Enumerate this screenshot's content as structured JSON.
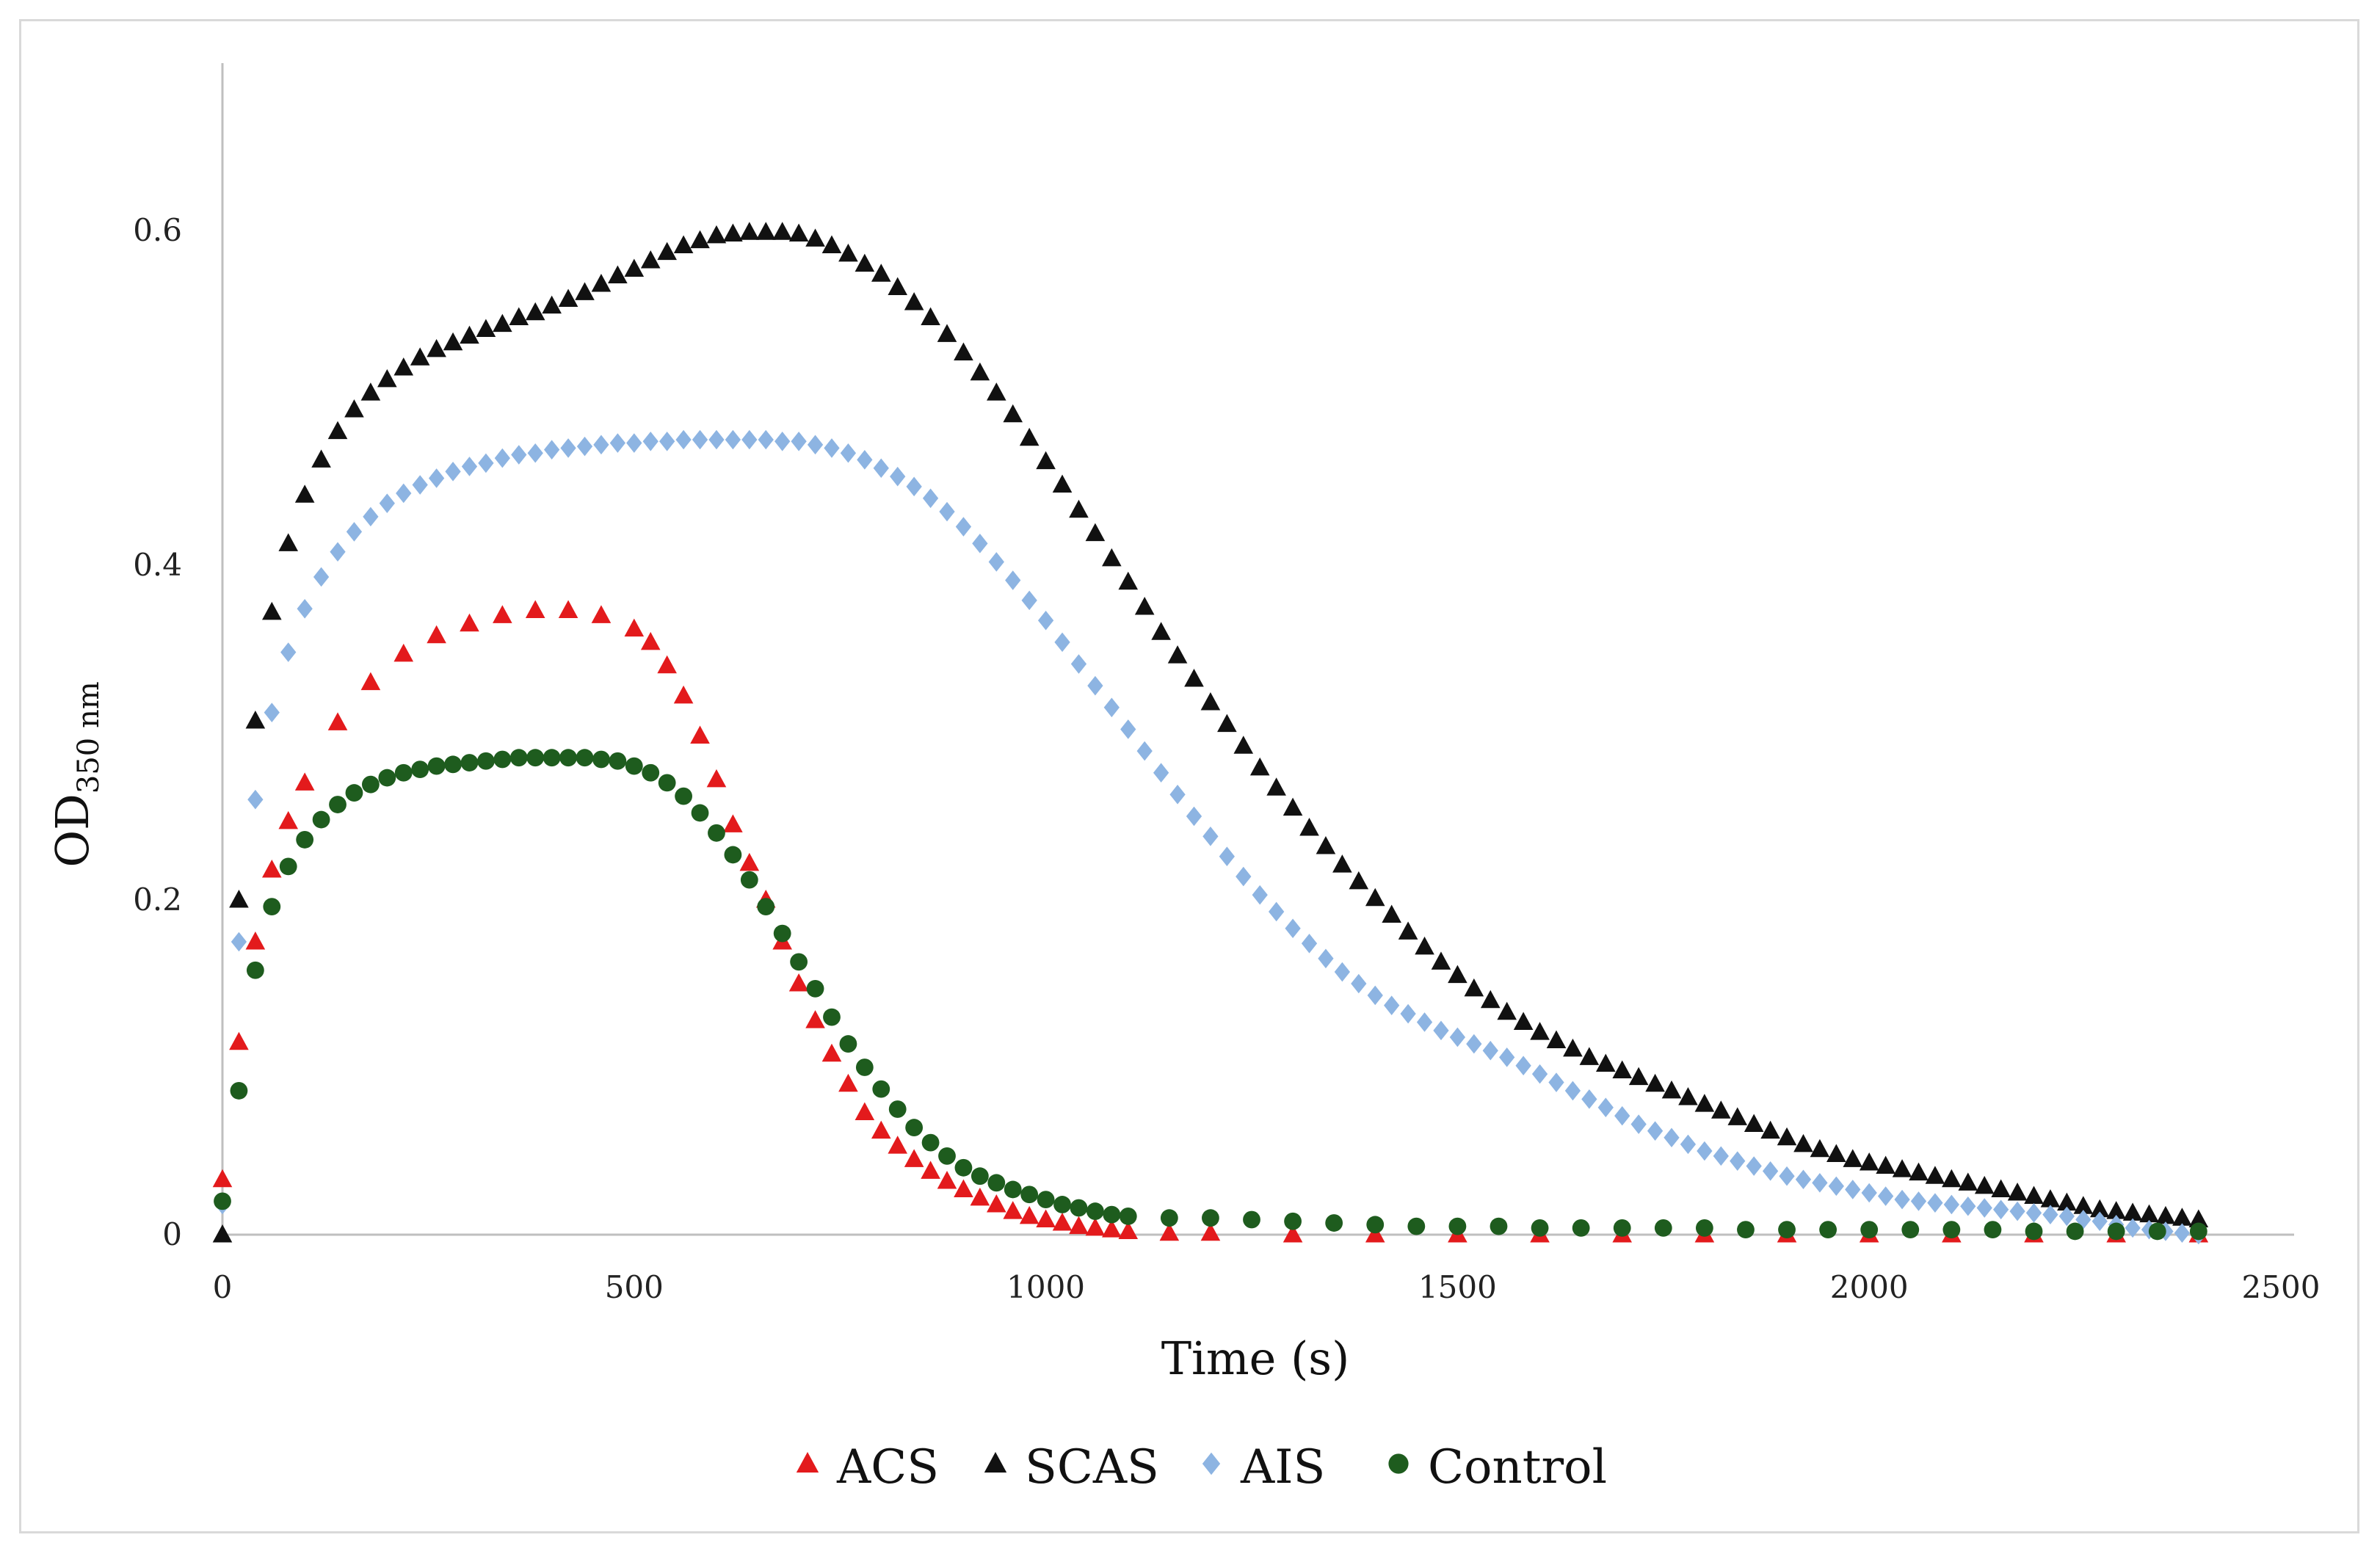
{
  "chart_data": {
    "type": "scatter",
    "xlabel": "Time (s)",
    "ylabel_main": "OD",
    "ylabel_sub": "350 nm",
    "xlim": [
      0,
      2500
    ],
    "ylim": [
      0,
      0.7
    ],
    "x_ticks": [
      0,
      500,
      1000,
      1500,
      2000,
      2500
    ],
    "y_ticks": [
      0,
      0.2,
      0.4,
      0.6
    ],
    "x_tick_labels": [
      "0",
      "500",
      "1000",
      "1500",
      "2000",
      "2500"
    ],
    "y_tick_labels": [
      "0",
      "0.2",
      "0.4",
      "0.6"
    ],
    "grid": false,
    "legend_position": "bottom",
    "series": [
      {
        "name": "ACS",
        "marker": "triangle",
        "color": "#e31a1c",
        "x": [
          0,
          20,
          40,
          60,
          80,
          100,
          140,
          180,
          220,
          260,
          300,
          340,
          380,
          420,
          460,
          500,
          520,
          540,
          560,
          580,
          600,
          620,
          640,
          660,
          680,
          700,
          720,
          740,
          760,
          780,
          800,
          820,
          840,
          860,
          880,
          900,
          920,
          940,
          960,
          980,
          1000,
          1020,
          1040,
          1060,
          1080,
          1100,
          1150,
          1200,
          1300,
          1400,
          1500,
          1600,
          1700,
          1800,
          1900,
          2000,
          2100,
          2200,
          2300,
          2400
        ],
        "y": [
          0.033,
          0.115,
          0.175,
          0.218,
          0.247,
          0.27,
          0.306,
          0.33,
          0.347,
          0.358,
          0.365,
          0.37,
          0.373,
          0.373,
          0.37,
          0.362,
          0.354,
          0.34,
          0.322,
          0.298,
          0.272,
          0.245,
          0.222,
          0.2,
          0.175,
          0.15,
          0.128,
          0.108,
          0.09,
          0.073,
          0.062,
          0.053,
          0.045,
          0.038,
          0.032,
          0.027,
          0.022,
          0.018,
          0.014,
          0.011,
          0.009,
          0.007,
          0.005,
          0.004,
          0.003,
          0.002,
          0.001,
          0.001,
          0.0,
          0.0,
          0.0,
          0.0,
          0.0,
          0.0,
          0.0,
          0.0,
          0.0,
          0.0,
          0.0,
          0.0
        ]
      },
      {
        "name": "SCAS",
        "marker": "triangle",
        "color": "#111111",
        "x": [
          0,
          20,
          40,
          60,
          80,
          100,
          120,
          140,
          160,
          180,
          200,
          220,
          240,
          260,
          280,
          300,
          320,
          340,
          360,
          380,
          400,
          420,
          440,
          460,
          480,
          500,
          520,
          540,
          560,
          580,
          600,
          620,
          640,
          660,
          680,
          700,
          720,
          740,
          760,
          780,
          800,
          820,
          840,
          860,
          880,
          900,
          920,
          940,
          960,
          980,
          1000,
          1020,
          1040,
          1060,
          1080,
          1100,
          1120,
          1140,
          1160,
          1180,
          1200,
          1220,
          1240,
          1260,
          1280,
          1300,
          1320,
          1340,
          1360,
          1380,
          1400,
          1420,
          1440,
          1460,
          1480,
          1500,
          1520,
          1540,
          1560,
          1580,
          1600,
          1620,
          1640,
          1660,
          1680,
          1700,
          1720,
          1740,
          1760,
          1780,
          1800,
          1820,
          1840,
          1860,
          1880,
          1900,
          1920,
          1940,
          1960,
          1980,
          2000,
          2020,
          2040,
          2060,
          2080,
          2100,
          2120,
          2140,
          2160,
          2180,
          2200,
          2220,
          2240,
          2260,
          2280,
          2300,
          2320,
          2340,
          2360,
          2380,
          2400
        ],
        "y": [
          0.0,
          0.2,
          0.307,
          0.372,
          0.413,
          0.442,
          0.463,
          0.48,
          0.493,
          0.503,
          0.511,
          0.518,
          0.524,
          0.529,
          0.533,
          0.537,
          0.541,
          0.544,
          0.548,
          0.551,
          0.555,
          0.559,
          0.563,
          0.568,
          0.573,
          0.577,
          0.582,
          0.587,
          0.591,
          0.594,
          0.597,
          0.598,
          0.599,
          0.599,
          0.599,
          0.598,
          0.595,
          0.591,
          0.586,
          0.58,
          0.574,
          0.566,
          0.557,
          0.548,
          0.538,
          0.527,
          0.515,
          0.503,
          0.49,
          0.476,
          0.462,
          0.448,
          0.433,
          0.419,
          0.404,
          0.39,
          0.375,
          0.36,
          0.346,
          0.332,
          0.318,
          0.305,
          0.292,
          0.279,
          0.267,
          0.255,
          0.243,
          0.232,
          0.221,
          0.211,
          0.201,
          0.191,
          0.181,
          0.172,
          0.163,
          0.155,
          0.147,
          0.14,
          0.133,
          0.127,
          0.121,
          0.116,
          0.111,
          0.106,
          0.102,
          0.098,
          0.094,
          0.09,
          0.086,
          0.082,
          0.078,
          0.074,
          0.07,
          0.066,
          0.062,
          0.058,
          0.054,
          0.051,
          0.048,
          0.045,
          0.043,
          0.041,
          0.039,
          0.037,
          0.035,
          0.033,
          0.031,
          0.029,
          0.027,
          0.025,
          0.023,
          0.021,
          0.019,
          0.017,
          0.015,
          0.014,
          0.013,
          0.012,
          0.011,
          0.01,
          0.009
        ]
      },
      {
        "name": "AIS",
        "marker": "diamond",
        "color": "#8db4e2",
        "x": [
          0,
          20,
          40,
          60,
          80,
          100,
          120,
          140,
          160,
          180,
          200,
          220,
          240,
          260,
          280,
          300,
          320,
          340,
          360,
          380,
          400,
          420,
          440,
          460,
          480,
          500,
          520,
          540,
          560,
          580,
          600,
          620,
          640,
          660,
          680,
          700,
          720,
          740,
          760,
          780,
          800,
          820,
          840,
          860,
          880,
          900,
          920,
          940,
          960,
          980,
          1000,
          1020,
          1040,
          1060,
          1080,
          1100,
          1120,
          1140,
          1160,
          1180,
          1200,
          1220,
          1240,
          1260,
          1280,
          1300,
          1320,
          1340,
          1360,
          1380,
          1400,
          1420,
          1440,
          1460,
          1480,
          1500,
          1520,
          1540,
          1560,
          1580,
          1600,
          1620,
          1640,
          1660,
          1680,
          1700,
          1720,
          1740,
          1760,
          1780,
          1800,
          1820,
          1840,
          1860,
          1880,
          1900,
          1920,
          1940,
          1960,
          1980,
          2000,
          2020,
          2040,
          2060,
          2080,
          2100,
          2120,
          2140,
          2160,
          2180,
          2200,
          2220,
          2240,
          2260,
          2280,
          2300,
          2320,
          2340,
          2360,
          2380,
          2400
        ],
        "y": [
          0.018,
          0.175,
          0.26,
          0.312,
          0.348,
          0.374,
          0.393,
          0.408,
          0.42,
          0.429,
          0.437,
          0.443,
          0.448,
          0.452,
          0.456,
          0.459,
          0.461,
          0.464,
          0.466,
          0.467,
          0.469,
          0.47,
          0.471,
          0.472,
          0.473,
          0.473,
          0.474,
          0.474,
          0.475,
          0.475,
          0.475,
          0.475,
          0.475,
          0.475,
          0.474,
          0.474,
          0.472,
          0.47,
          0.467,
          0.463,
          0.458,
          0.453,
          0.447,
          0.44,
          0.432,
          0.423,
          0.413,
          0.402,
          0.391,
          0.379,
          0.367,
          0.354,
          0.341,
          0.328,
          0.315,
          0.302,
          0.289,
          0.276,
          0.263,
          0.25,
          0.238,
          0.226,
          0.214,
          0.203,
          0.193,
          0.183,
          0.174,
          0.165,
          0.157,
          0.15,
          0.143,
          0.137,
          0.132,
          0.127,
          0.122,
          0.118,
          0.114,
          0.11,
          0.106,
          0.101,
          0.096,
          0.091,
          0.086,
          0.081,
          0.076,
          0.071,
          0.066,
          0.062,
          0.058,
          0.054,
          0.05,
          0.047,
          0.044,
          0.041,
          0.038,
          0.035,
          0.033,
          0.031,
          0.029,
          0.027,
          0.025,
          0.023,
          0.021,
          0.02,
          0.019,
          0.018,
          0.017,
          0.016,
          0.015,
          0.014,
          0.013,
          0.012,
          0.011,
          0.009,
          0.008,
          0.006,
          0.004,
          0.003,
          0.002,
          0.001,
          0.0
        ]
      },
      {
        "name": "Control",
        "marker": "circle",
        "color": "#1e5c1e",
        "x": [
          0,
          20,
          40,
          60,
          80,
          100,
          120,
          140,
          160,
          180,
          200,
          220,
          240,
          260,
          280,
          300,
          320,
          340,
          360,
          380,
          400,
          420,
          440,
          460,
          480,
          500,
          520,
          540,
          560,
          580,
          600,
          620,
          640,
          660,
          680,
          700,
          720,
          740,
          760,
          780,
          800,
          820,
          840,
          860,
          880,
          900,
          920,
          940,
          960,
          980,
          1000,
          1020,
          1040,
          1060,
          1080,
          1100,
          1150,
          1200,
          1250,
          1300,
          1350,
          1400,
          1450,
          1500,
          1550,
          1600,
          1650,
          1700,
          1750,
          1800,
          1850,
          1900,
          1950,
          2000,
          2050,
          2100,
          2150,
          2200,
          2250,
          2300,
          2350,
          2400
        ],
        "y": [
          0.02,
          0.086,
          0.158,
          0.196,
          0.22,
          0.236,
          0.248,
          0.257,
          0.264,
          0.269,
          0.273,
          0.276,
          0.278,
          0.28,
          0.281,
          0.282,
          0.283,
          0.284,
          0.285,
          0.285,
          0.285,
          0.285,
          0.285,
          0.284,
          0.283,
          0.28,
          0.276,
          0.27,
          0.262,
          0.252,
          0.24,
          0.227,
          0.212,
          0.196,
          0.18,
          0.163,
          0.147,
          0.13,
          0.114,
          0.1,
          0.087,
          0.075,
          0.064,
          0.055,
          0.047,
          0.04,
          0.035,
          0.031,
          0.027,
          0.024,
          0.021,
          0.018,
          0.016,
          0.014,
          0.012,
          0.011,
          0.01,
          0.01,
          0.009,
          0.008,
          0.007,
          0.006,
          0.005,
          0.005,
          0.005,
          0.004,
          0.004,
          0.004,
          0.004,
          0.004,
          0.003,
          0.003,
          0.003,
          0.003,
          0.003,
          0.003,
          0.003,
          0.002,
          0.002,
          0.002,
          0.002,
          0.002
        ]
      }
    ]
  }
}
